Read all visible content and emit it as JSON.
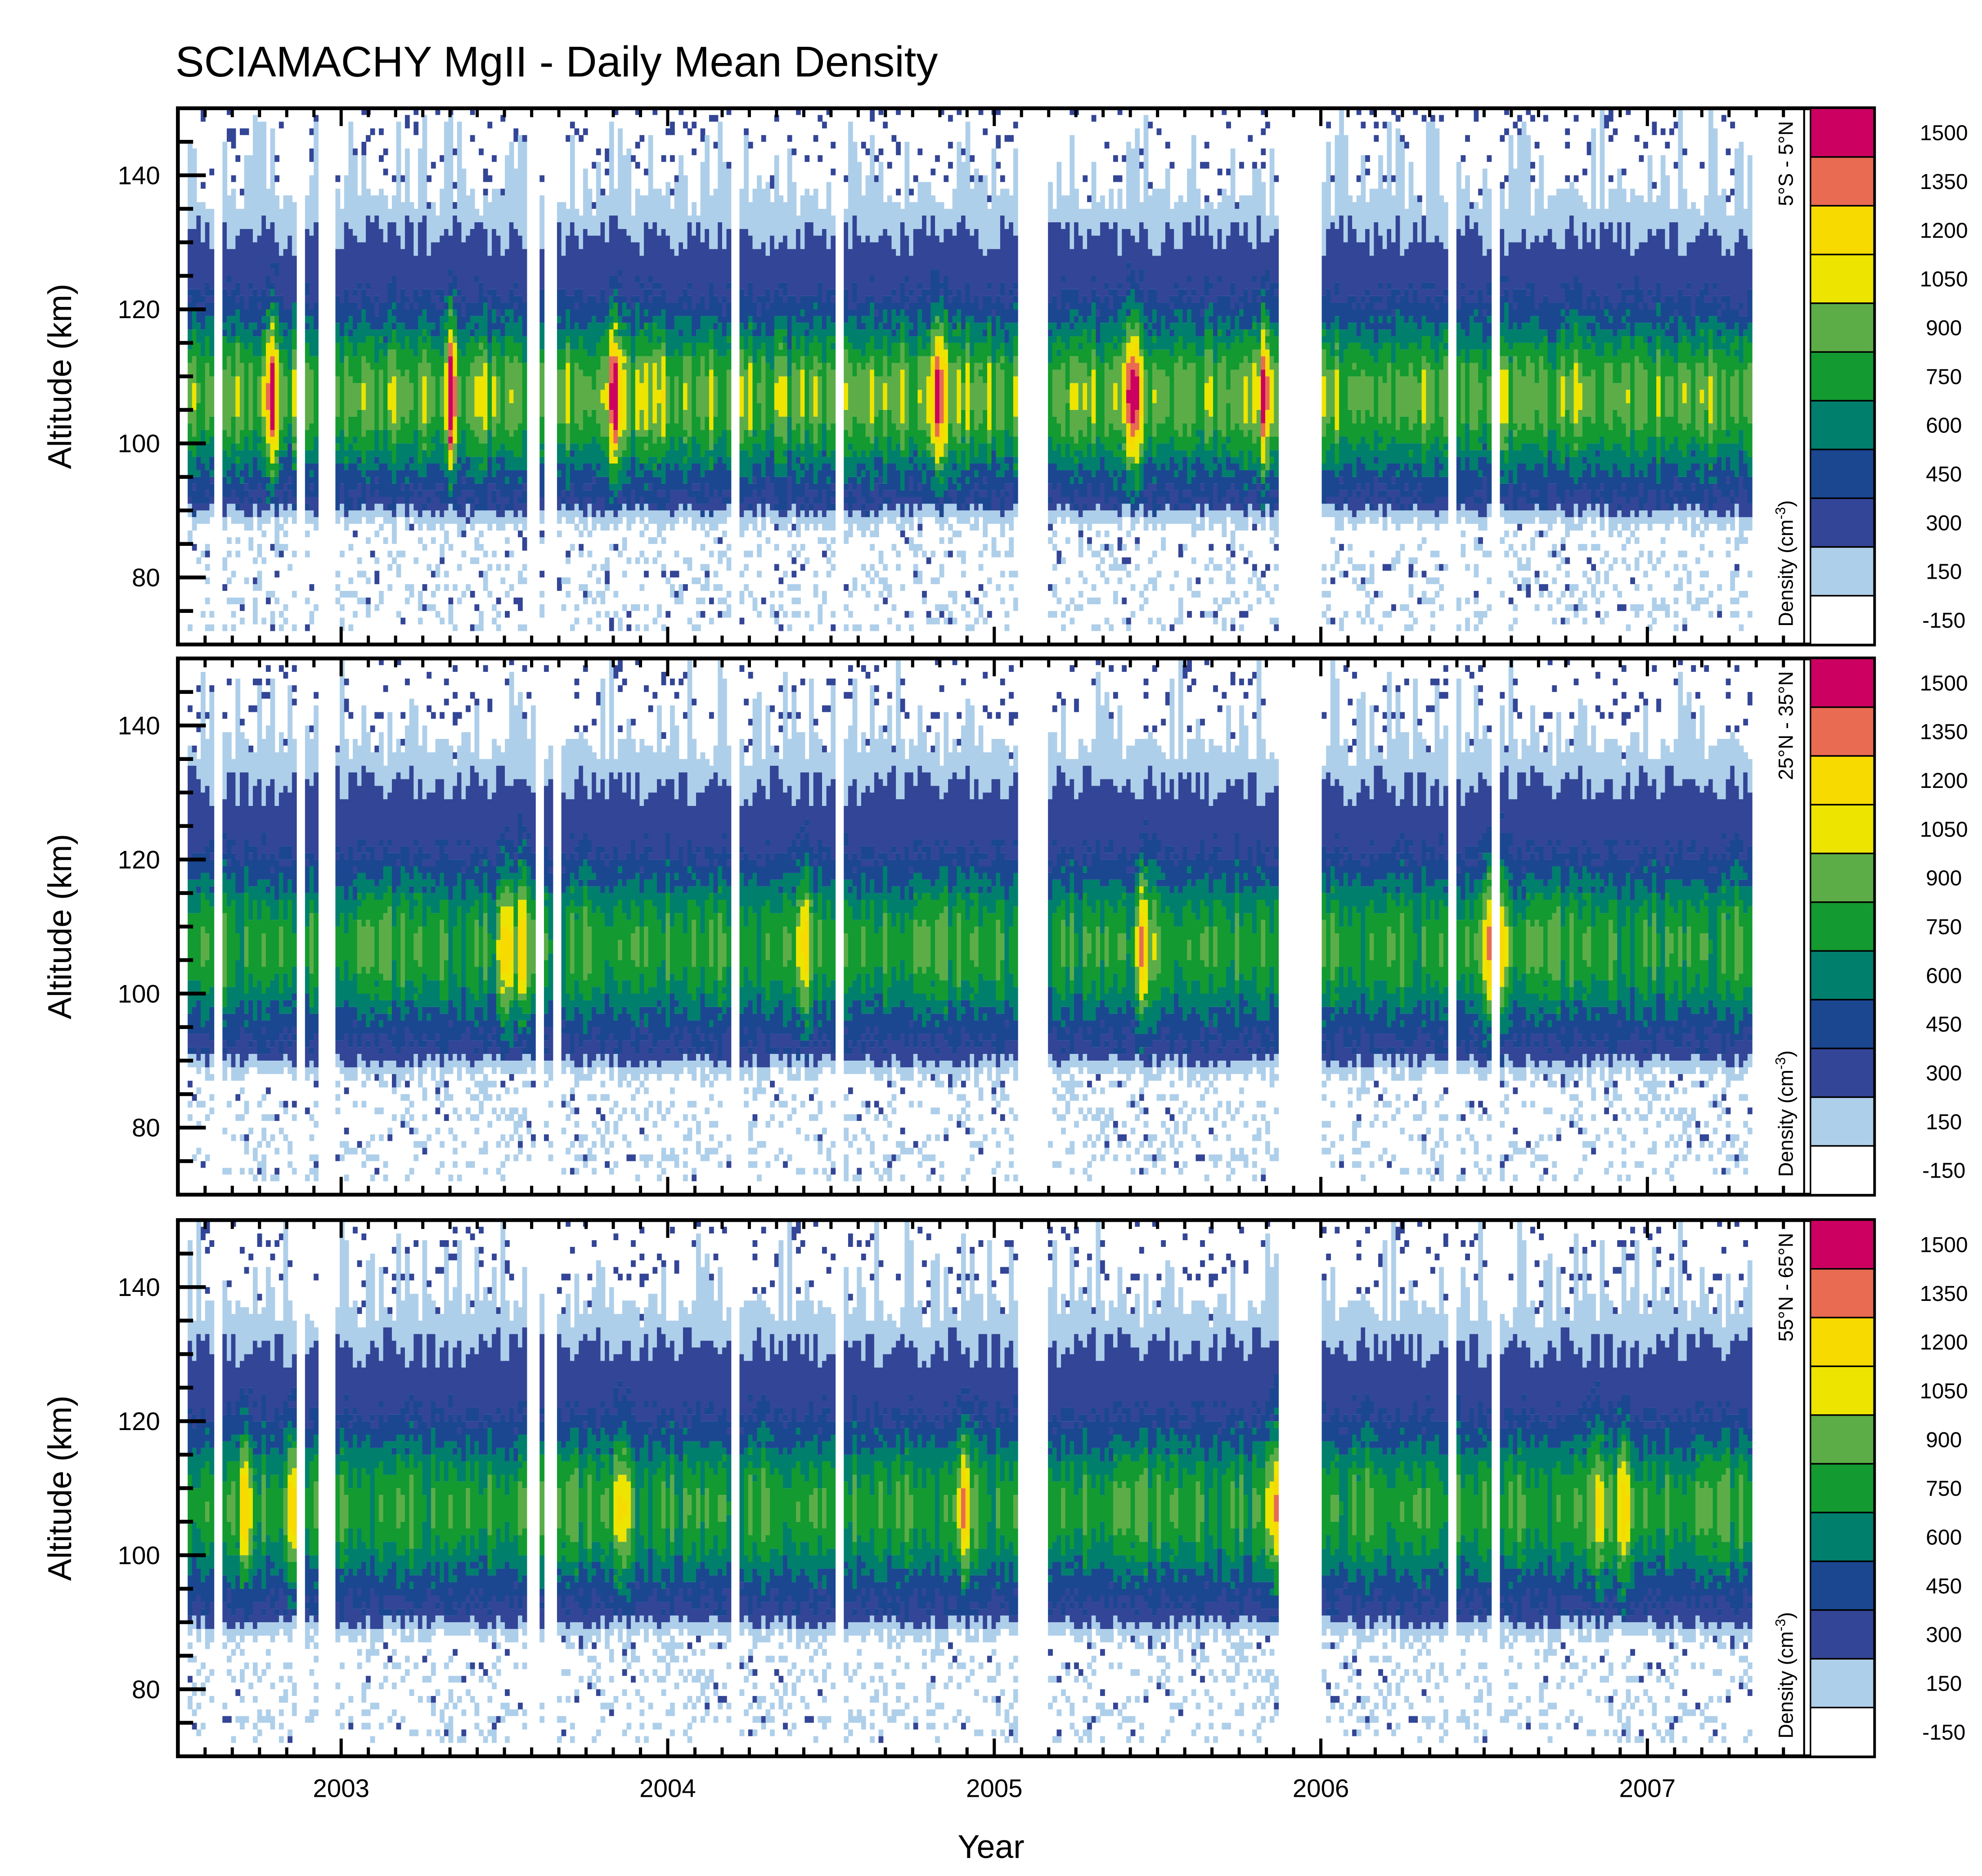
{
  "chart_data": {
    "type": "heatmap",
    "subtype": "filled-contour",
    "title": "SCIAMACHY MgII - Daily Mean Density",
    "xlabel": "Year",
    "ylabel": "Altitude (km)",
    "colorbar_label": "Density (cm",
    "colorbar_label_exp": "-3",
    "colorbar_label_close": ")",
    "xlim": [
      2002.5,
      2007.48
    ],
    "ylim": [
      70,
      150
    ],
    "x_ticks": [
      "2003",
      "2004",
      "2005",
      "2006",
      "2007"
    ],
    "x_tick_values": [
      2003,
      2004,
      2005,
      2006,
      2007
    ],
    "y_ticks": [
      "80",
      "100",
      "120",
      "140"
    ],
    "y_tick_values": [
      80,
      100,
      120,
      140
    ],
    "data_range_x": [
      2002.53,
      2007.32
    ],
    "data_range_y": [
      72,
      150
    ],
    "peak_altitude_km": 107,
    "levels": [
      {
        "label": "1500",
        "value": 1500,
        "color": "#cc0060"
      },
      {
        "label": "1350",
        "value": 1350,
        "color": "#e86b52"
      },
      {
        "label": "1200",
        "value": 1200,
        "color": "#f7da00"
      },
      {
        "label": "1050",
        "value": 1050,
        "color": "#ede400"
      },
      {
        "label": "900",
        "value": 900,
        "color": "#5cad48"
      },
      {
        "label": "750",
        "value": 750,
        "color": "#139a31"
      },
      {
        "label": "600",
        "value": 600,
        "color": "#007f6d"
      },
      {
        "label": "450",
        "value": 450,
        "color": "#1b4791"
      },
      {
        "label": "300",
        "value": 300,
        "color": "#334596"
      },
      {
        "label": "150",
        "value": 150,
        "color": "#aecfea"
      },
      {
        "label": "-150",
        "value": -150,
        "color": "#ffffff"
      }
    ],
    "panels": [
      {
        "region": "5°S - 5°N",
        "peak_strength": 1.0,
        "bright_events": [
          2002.78,
          2003.33,
          2003.83,
          2004.82,
          2005.42,
          2005.82
        ],
        "data_gaps": [
          [
            2002.62,
            2002.63
          ],
          [
            2002.87,
            2002.88
          ],
          [
            2002.93,
            2002.97
          ],
          [
            2003.58,
            2003.6
          ],
          [
            2003.63,
            2003.65
          ],
          [
            2004.2,
            2004.21
          ],
          [
            2004.52,
            2004.53
          ],
          [
            2005.08,
            2005.16
          ],
          [
            2005.88,
            2005.99
          ],
          [
            2006.39,
            2006.41
          ],
          [
            2006.53,
            2006.54
          ]
        ]
      },
      {
        "region": "25°N - 35°N",
        "peak_strength": 0.85,
        "bright_events": [
          2003.5,
          2003.55,
          2004.42,
          2005.45,
          2006.5,
          2006.55
        ],
        "data_gaps": [
          [
            2002.62,
            2002.63
          ],
          [
            2002.87,
            2002.88
          ],
          [
            2002.93,
            2002.97
          ],
          [
            2003.6,
            2003.62
          ],
          [
            2003.65,
            2003.67
          ],
          [
            2004.2,
            2004.21
          ],
          [
            2004.52,
            2004.53
          ],
          [
            2005.08,
            2005.16
          ],
          [
            2005.88,
            2005.99
          ],
          [
            2006.39,
            2006.41
          ],
          [
            2006.53,
            2006.54
          ]
        ]
      },
      {
        "region": "55°N - 65°N",
        "peak_strength": 0.85,
        "bright_events": [
          2002.7,
          2002.85,
          2003.85,
          2004.9,
          2005.85,
          2006.85,
          2006.92
        ],
        "data_gaps": [
          [
            2002.62,
            2002.63
          ],
          [
            2002.87,
            2002.88
          ],
          [
            2002.93,
            2002.97
          ],
          [
            2003.58,
            2003.6
          ],
          [
            2003.63,
            2003.65
          ],
          [
            2004.2,
            2004.21
          ],
          [
            2004.52,
            2004.53
          ],
          [
            2005.08,
            2005.16
          ],
          [
            2005.88,
            2005.99
          ],
          [
            2006.39,
            2006.41
          ],
          [
            2006.53,
            2006.54
          ]
        ]
      }
    ]
  }
}
